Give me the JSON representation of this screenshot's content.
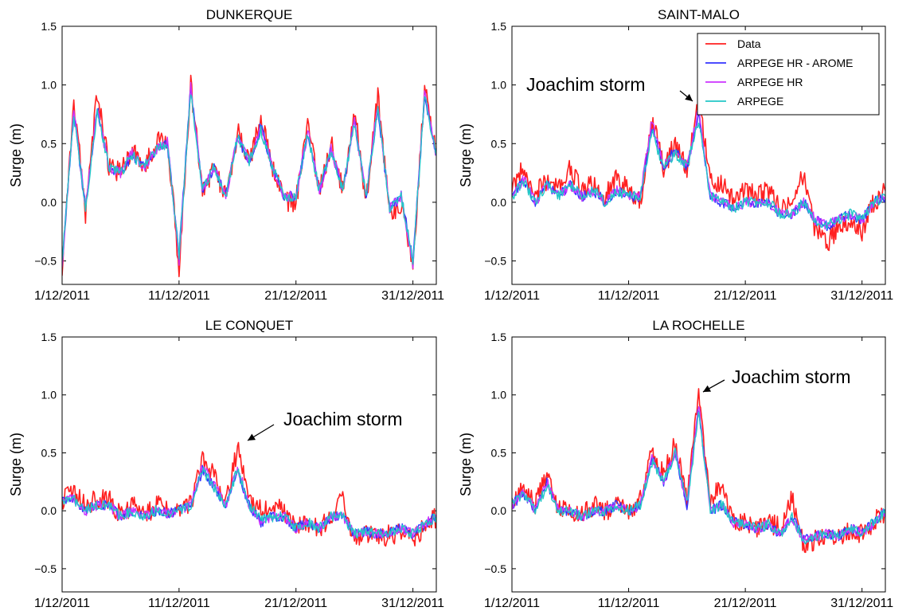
{
  "figure": {
    "colors": {
      "Data": "#ff2020",
      "ARPEGE HR - AROME": "#3333ff",
      "ARPEGE HR": "#cc33ff",
      "ARPEGE": "#22c7c7"
    }
  },
  "chart_data": [
    {
      "type": "line",
      "title": "DUNKERQUE",
      "xlabel": "",
      "ylabel": "Surge (m)",
      "ylim": [
        -0.7,
        1.5
      ],
      "xlim": [
        "2011-12-01",
        "2012-01-02"
      ],
      "y_ticks": [
        -0.5,
        0.0,
        0.5,
        1.0,
        1.5
      ],
      "y_tick_labels": [
        "−0.5",
        "0.0",
        "0.5",
        "1.0",
        "1.5"
      ],
      "x_ticks": [
        "2011-12-01",
        "2011-12-11",
        "2011-12-21",
        "2011-12-31"
      ],
      "x_tick_labels": [
        "1/12/2011",
        "11/12/2011",
        "21/12/2011",
        "31/12/2011"
      ],
      "x": [
        "2011-12-01",
        "2011-12-02",
        "2011-12-03",
        "2011-12-04",
        "2011-12-05",
        "2011-12-06",
        "2011-12-07",
        "2011-12-08",
        "2011-12-09",
        "2011-12-10",
        "2011-12-11",
        "2011-12-12",
        "2011-12-13",
        "2011-12-14",
        "2011-12-15",
        "2011-12-16",
        "2011-12-17",
        "2011-12-18",
        "2011-12-19",
        "2011-12-20",
        "2011-12-21",
        "2011-12-22",
        "2011-12-23",
        "2011-12-24",
        "2011-12-25",
        "2011-12-26",
        "2011-12-27",
        "2011-12-28",
        "2011-12-29",
        "2011-12-30",
        "2011-12-31",
        "2012-01-01",
        "2012-01-02"
      ],
      "series": [
        {
          "name": "Data",
          "values": [
            -0.6,
            0.9,
            -0.1,
            0.95,
            0.3,
            0.25,
            0.45,
            0.3,
            0.5,
            0.55,
            -0.55,
            1.0,
            0.1,
            0.3,
            0.05,
            0.6,
            0.35,
            0.7,
            0.3,
            0.0,
            0.0,
            0.7,
            0.1,
            0.5,
            0.1,
            0.8,
            0.0,
            0.9,
            -0.1,
            0.0,
            -0.6,
            1.0,
            0.4
          ]
        },
        {
          "name": "ARPEGE HR - AROME",
          "values": [
            -0.5,
            0.75,
            -0.05,
            0.8,
            0.3,
            0.25,
            0.4,
            0.3,
            0.45,
            0.5,
            -0.45,
            1.0,
            0.1,
            0.3,
            0.05,
            0.55,
            0.35,
            0.65,
            0.3,
            0.05,
            0.05,
            0.6,
            0.1,
            0.45,
            0.1,
            0.7,
            0.05,
            0.8,
            -0.05,
            0.05,
            -0.5,
            0.9,
            0.4
          ]
        },
        {
          "name": "ARPEGE HR",
          "values": [
            -0.55,
            0.8,
            -0.05,
            0.8,
            0.3,
            0.25,
            0.42,
            0.3,
            0.45,
            0.52,
            -0.5,
            1.0,
            0.1,
            0.3,
            0.05,
            0.55,
            0.35,
            0.65,
            0.3,
            0.05,
            0.05,
            0.6,
            0.1,
            0.45,
            0.1,
            0.7,
            0.05,
            0.85,
            -0.05,
            0.05,
            -0.55,
            0.95,
            0.4
          ]
        },
        {
          "name": "ARPEGE",
          "values": [
            -0.5,
            0.75,
            -0.05,
            0.78,
            0.3,
            0.25,
            0.4,
            0.3,
            0.45,
            0.5,
            -0.45,
            0.95,
            0.1,
            0.3,
            0.05,
            0.55,
            0.35,
            0.62,
            0.3,
            0.05,
            0.05,
            0.58,
            0.1,
            0.45,
            0.1,
            0.68,
            0.05,
            0.8,
            -0.05,
            0.05,
            -0.5,
            0.9,
            0.4
          ]
        }
      ],
      "annotations": [],
      "legend": ""
    },
    {
      "type": "line",
      "title": "SAINT-MALO",
      "xlabel": "",
      "ylabel": "Surge (m)",
      "ylim": [
        -0.7,
        1.5
      ],
      "xlim": [
        "2011-12-01",
        "2012-01-02"
      ],
      "y_ticks": [
        -0.5,
        0.0,
        0.5,
        1.0,
        1.5
      ],
      "y_tick_labels": [
        "−0.5",
        "0.0",
        "0.5",
        "1.0",
        "1.5"
      ],
      "x_ticks": [
        "2011-12-01",
        "2011-12-11",
        "2011-12-21",
        "2011-12-31"
      ],
      "x_tick_labels": [
        "1/12/2011",
        "11/12/2011",
        "21/12/2011",
        "31/12/2011"
      ],
      "x": [
        "2011-12-01",
        "2011-12-02",
        "2011-12-03",
        "2011-12-04",
        "2011-12-05",
        "2011-12-06",
        "2011-12-07",
        "2011-12-08",
        "2011-12-09",
        "2011-12-10",
        "2011-12-11",
        "2011-12-12",
        "2011-12-13",
        "2011-12-14",
        "2011-12-15",
        "2011-12-16",
        "2011-12-17",
        "2011-12-18",
        "2011-12-19",
        "2011-12-20",
        "2011-12-21",
        "2011-12-22",
        "2011-12-23",
        "2011-12-24",
        "2011-12-25",
        "2011-12-26",
        "2011-12-27",
        "2011-12-28",
        "2011-12-29",
        "2011-12-30",
        "2011-12-31",
        "2012-01-01",
        "2012-01-02"
      ],
      "series": [
        {
          "name": "Data",
          "values": [
            0.1,
            0.3,
            0.05,
            0.2,
            0.1,
            0.3,
            0.1,
            0.15,
            0.05,
            0.2,
            0.1,
            0.0,
            0.7,
            0.3,
            0.5,
            0.3,
            0.9,
            0.2,
            0.15,
            0.0,
            0.1,
            0.05,
            0.1,
            -0.05,
            0.0,
            0.25,
            -0.25,
            -0.35,
            -0.2,
            -0.15,
            -0.25,
            0.0,
            0.1
          ]
        },
        {
          "name": "ARPEGE HR - AROME",
          "values": [
            0.05,
            0.2,
            0.0,
            0.15,
            0.05,
            0.15,
            0.05,
            0.1,
            0.0,
            0.1,
            0.05,
            0.05,
            0.65,
            0.3,
            0.45,
            0.3,
            0.75,
            0.05,
            0.0,
            -0.05,
            0.0,
            0.0,
            0.0,
            -0.1,
            -0.1,
            0.0,
            -0.15,
            -0.2,
            -0.15,
            -0.1,
            -0.15,
            0.0,
            0.05
          ]
        },
        {
          "name": "ARPEGE HR",
          "values": [
            0.05,
            0.2,
            0.0,
            0.15,
            0.05,
            0.15,
            0.05,
            0.1,
            0.0,
            0.1,
            0.05,
            0.05,
            0.7,
            0.3,
            0.45,
            0.3,
            0.8,
            0.05,
            0.0,
            -0.05,
            0.0,
            0.0,
            0.0,
            -0.1,
            -0.1,
            0.0,
            -0.15,
            -0.2,
            -0.15,
            -0.1,
            -0.15,
            0.0,
            0.05
          ]
        },
        {
          "name": "ARPEGE",
          "values": [
            0.05,
            0.18,
            0.0,
            0.15,
            0.05,
            0.15,
            0.05,
            0.1,
            0.0,
            0.1,
            0.05,
            0.05,
            0.6,
            0.3,
            0.42,
            0.3,
            0.7,
            0.05,
            0.0,
            -0.05,
            0.0,
            0.0,
            0.0,
            -0.1,
            -0.1,
            0.0,
            -0.15,
            -0.2,
            -0.15,
            -0.1,
            -0.15,
            0.0,
            0.05
          ]
        }
      ],
      "annotations": [
        {
          "text": "Joachim storm",
          "x": "2011-12-16",
          "y": 0.88
        }
      ],
      "legend": "top-right"
    },
    {
      "type": "line",
      "title": "LE CONQUET",
      "xlabel": "",
      "ylabel": "Surge (m)",
      "ylim": [
        -0.7,
        1.5
      ],
      "xlim": [
        "2011-12-01",
        "2012-01-02"
      ],
      "y_ticks": [
        -0.5,
        0.0,
        0.5,
        1.0,
        1.5
      ],
      "y_tick_labels": [
        "−0.5",
        "0.0",
        "0.5",
        "1.0",
        "1.5"
      ],
      "x_ticks": [
        "2011-12-01",
        "2011-12-11",
        "2011-12-21",
        "2011-12-31"
      ],
      "x_tick_labels": [
        "1/12/2011",
        "11/12/2011",
        "21/12/2011",
        "31/12/2011"
      ],
      "x": [
        "2011-12-01",
        "2011-12-02",
        "2011-12-03",
        "2011-12-04",
        "2011-12-05",
        "2011-12-06",
        "2011-12-07",
        "2011-12-08",
        "2011-12-09",
        "2011-12-10",
        "2011-12-11",
        "2011-12-12",
        "2011-12-13",
        "2011-12-14",
        "2011-12-15",
        "2011-12-16",
        "2011-12-17",
        "2011-12-18",
        "2011-12-19",
        "2011-12-20",
        "2011-12-21",
        "2011-12-22",
        "2011-12-23",
        "2011-12-24",
        "2011-12-25",
        "2011-12-26",
        "2011-12-27",
        "2011-12-28",
        "2011-12-29",
        "2011-12-30",
        "2011-12-31",
        "2012-01-01",
        "2012-01-02"
      ],
      "series": [
        {
          "name": "Data",
          "values": [
            0.1,
            0.15,
            0.05,
            0.1,
            0.1,
            -0.05,
            0.05,
            -0.05,
            0.05,
            0.0,
            0.0,
            0.05,
            0.45,
            0.3,
            0.05,
            0.55,
            0.1,
            0.0,
            0.05,
            0.0,
            -0.15,
            -0.1,
            -0.15,
            -0.05,
            0.1,
            -0.25,
            -0.2,
            -0.25,
            -0.2,
            -0.2,
            -0.25,
            -0.15,
            -0.05
          ]
        },
        {
          "name": "ARPEGE HR - AROME",
          "values": [
            0.08,
            0.1,
            0.0,
            0.05,
            0.05,
            -0.05,
            0.0,
            -0.05,
            0.0,
            -0.02,
            0.0,
            0.05,
            0.35,
            0.2,
            0.05,
            0.35,
            0.05,
            -0.1,
            -0.05,
            -0.05,
            -0.15,
            -0.1,
            -0.15,
            -0.05,
            -0.05,
            -0.2,
            -0.18,
            -0.2,
            -0.18,
            -0.15,
            -0.2,
            -0.12,
            -0.05
          ]
        },
        {
          "name": "ARPEGE HR",
          "values": [
            0.08,
            0.1,
            0.0,
            0.05,
            0.05,
            -0.05,
            0.0,
            -0.05,
            0.0,
            -0.02,
            0.0,
            0.05,
            0.38,
            0.22,
            0.05,
            0.38,
            0.05,
            -0.1,
            -0.05,
            -0.05,
            -0.15,
            -0.1,
            -0.15,
            -0.05,
            -0.05,
            -0.2,
            -0.18,
            -0.2,
            -0.18,
            -0.15,
            -0.2,
            -0.12,
            -0.05
          ]
        },
        {
          "name": "ARPEGE",
          "values": [
            0.08,
            0.1,
            0.0,
            0.05,
            0.05,
            -0.05,
            0.0,
            -0.05,
            0.0,
            -0.02,
            0.0,
            0.05,
            0.35,
            0.2,
            0.05,
            0.35,
            0.05,
            -0.08,
            -0.05,
            -0.05,
            -0.15,
            -0.1,
            -0.15,
            -0.05,
            -0.05,
            -0.2,
            -0.18,
            -0.2,
            -0.18,
            -0.15,
            -0.2,
            -0.12,
            -0.05
          ]
        }
      ],
      "annotations": [
        {
          "text": "Joachim storm",
          "x": "2011-12-16",
          "y": 0.55
        }
      ],
      "legend": ""
    },
    {
      "type": "line",
      "title": "LA ROCHELLE",
      "xlabel": "",
      "ylabel": "Surge (m)",
      "ylim": [
        -0.7,
        1.5
      ],
      "xlim": [
        "2011-12-01",
        "2012-01-02"
      ],
      "y_ticks": [
        -0.5,
        0.0,
        0.5,
        1.0,
        1.5
      ],
      "y_tick_labels": [
        "−0.5",
        "0.0",
        "0.5",
        "1.0",
        "1.5"
      ],
      "x_ticks": [
        "2011-12-01",
        "2011-12-11",
        "2011-12-21",
        "2011-12-31"
      ],
      "x_tick_labels": [
        "1/12/2011",
        "11/12/2011",
        "21/12/2011",
        "31/12/2011"
      ],
      "x": [
        "2011-12-01",
        "2011-12-02",
        "2011-12-03",
        "2011-12-04",
        "2011-12-05",
        "2011-12-06",
        "2011-12-07",
        "2011-12-08",
        "2011-12-09",
        "2011-12-10",
        "2011-12-11",
        "2011-12-12",
        "2011-12-13",
        "2011-12-14",
        "2011-12-15",
        "2011-12-16",
        "2011-12-17",
        "2011-12-18",
        "2011-12-19",
        "2011-12-20",
        "2011-12-21",
        "2011-12-22",
        "2011-12-23",
        "2011-12-24",
        "2011-12-25",
        "2011-12-26",
        "2011-12-27",
        "2011-12-28",
        "2011-12-29",
        "2011-12-30",
        "2011-12-31",
        "2012-01-01",
        "2012-01-02"
      ],
      "series": [
        {
          "name": "Data",
          "values": [
            0.1,
            0.2,
            0.05,
            0.3,
            0.0,
            0.0,
            -0.05,
            0.05,
            0.0,
            0.05,
            0.0,
            0.1,
            0.5,
            0.3,
            0.6,
            0.1,
            1.0,
            0.1,
            0.2,
            -0.1,
            -0.1,
            -0.15,
            -0.1,
            -0.15,
            0.1,
            -0.3,
            -0.25,
            -0.2,
            -0.25,
            -0.15,
            -0.2,
            -0.1,
            0.0
          ]
        },
        {
          "name": "ARPEGE HR - AROME",
          "values": [
            0.05,
            0.15,
            0.0,
            0.25,
            0.0,
            0.0,
            -0.05,
            0.0,
            0.0,
            0.05,
            0.0,
            0.05,
            0.45,
            0.25,
            0.5,
            0.05,
            0.9,
            0.0,
            0.05,
            -0.1,
            -0.12,
            -0.15,
            -0.12,
            -0.2,
            -0.05,
            -0.25,
            -0.22,
            -0.2,
            -0.22,
            -0.15,
            -0.2,
            -0.1,
            0.0
          ]
        },
        {
          "name": "ARPEGE HR",
          "values": [
            0.05,
            0.15,
            0.0,
            0.25,
            0.0,
            0.0,
            -0.05,
            0.0,
            0.0,
            0.05,
            0.0,
            0.05,
            0.45,
            0.25,
            0.52,
            0.05,
            0.92,
            0.0,
            0.05,
            -0.1,
            -0.12,
            -0.15,
            -0.12,
            -0.2,
            -0.05,
            -0.25,
            -0.22,
            -0.2,
            -0.22,
            -0.15,
            -0.2,
            -0.1,
            0.0
          ]
        },
        {
          "name": "ARPEGE",
          "values": [
            0.05,
            0.15,
            0.0,
            0.22,
            0.0,
            0.0,
            -0.05,
            0.0,
            0.0,
            0.05,
            0.0,
            0.05,
            0.42,
            0.25,
            0.5,
            0.05,
            0.85,
            0.0,
            0.05,
            -0.1,
            -0.12,
            -0.15,
            -0.12,
            -0.2,
            -0.05,
            -0.25,
            -0.22,
            -0.2,
            -0.22,
            -0.15,
            -0.2,
            -0.1,
            0.0
          ]
        }
      ],
      "annotations": [
        {
          "text": "Joachim storm",
          "x": "2011-12-17",
          "y": 1.0
        }
      ],
      "legend": ""
    }
  ]
}
